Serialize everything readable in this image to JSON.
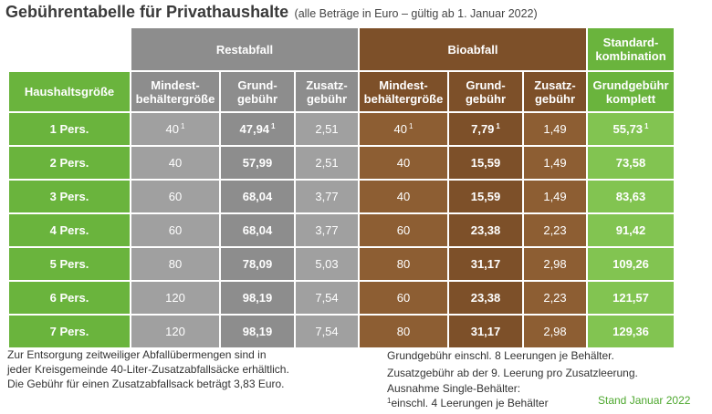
{
  "header": {
    "title": "Gebührentabelle für Privathaushalte",
    "subtitle": "(alle Beträge in Euro – gültig ab 1. Januar 2022)"
  },
  "groups": {
    "restabfall": "Restabfall",
    "bioabfall": "Bioabfall",
    "standard": "Standard-\nkombination"
  },
  "columns": {
    "household": "Haushaltsgröße",
    "rest_min": "Mindest-\nbehältergröße",
    "rest_base": "Grund-\ngebühr",
    "rest_extra": "Zusatz-\ngebühr",
    "bio_min": "Mindest-\nbehältergröße",
    "bio_base": "Grund-\ngebühr",
    "bio_extra": "Zusatz-\ngebühr",
    "total": "Grundgebühr\nkomplett"
  },
  "rows": [
    {
      "household": "1 Pers.",
      "rest_min": "40",
      "rest_base": "47,94",
      "rest_extra": "2,51",
      "bio_min": "40",
      "bio_base": "7,79",
      "bio_extra": "1,49",
      "total": "55,73",
      "footnote": "1"
    },
    {
      "household": "2 Pers.",
      "rest_min": "40",
      "rest_base": "57,99",
      "rest_extra": "2,51",
      "bio_min": "40",
      "bio_base": "15,59",
      "bio_extra": "1,49",
      "total": "73,58",
      "footnote": ""
    },
    {
      "household": "3 Pers.",
      "rest_min": "60",
      "rest_base": "68,04",
      "rest_extra": "3,77",
      "bio_min": "40",
      "bio_base": "15,59",
      "bio_extra": "1,49",
      "total": "83,63",
      "footnote": ""
    },
    {
      "household": "4 Pers.",
      "rest_min": "60",
      "rest_base": "68,04",
      "rest_extra": "3,77",
      "bio_min": "60",
      "bio_base": "23,38",
      "bio_extra": "2,23",
      "total": "91,42",
      "footnote": ""
    },
    {
      "household": "5 Pers.",
      "rest_min": "80",
      "rest_base": "78,09",
      "rest_extra": "5,03",
      "bio_min": "80",
      "bio_base": "31,17",
      "bio_extra": "2,98",
      "total": "109,26",
      "footnote": ""
    },
    {
      "household": "6 Pers.",
      "rest_min": "120",
      "rest_base": "98,19",
      "rest_extra": "7,54",
      "bio_min": "60",
      "bio_base": "23,38",
      "bio_extra": "2,23",
      "total": "121,57",
      "footnote": ""
    },
    {
      "household": "7 Pers.",
      "rest_min": "120",
      "rest_base": "98,19",
      "rest_extra": "7,54",
      "bio_min": "80",
      "bio_base": "31,17",
      "bio_extra": "2,98",
      "total": "129,36",
      "footnote": ""
    }
  ],
  "notes": {
    "left": [
      "Zur Entsorgung zeitweiliger Abfallübermengen sind in",
      "jeder Kreisgemeinde 40-Liter-Zusatzabfallsäcke erhältlich.",
      "Die Gebühr für einen Zusatzabfallsack beträgt 3,83 Euro."
    ],
    "right_1": "Grundgebühr einschl. 8 Leerungen je Behälter.",
    "right_2": "Zusatzgebühr ab der 9. Leerung pro Zusatzleerung.",
    "right_3": "Ausnahme Single-Behälter:",
    "footnote_mark": "1",
    "right_4": "einschl. 4 Leerungen je Behälter",
    "stand": "Stand Januar 2022"
  },
  "colors": {
    "rest_dark": "#8d8d8d",
    "rest_light": "#a0a0a0",
    "bio_dark": "#7d5029",
    "bio_light": "#8d5e33",
    "green_dark": "#6ab43d",
    "green_light": "#82c451"
  }
}
